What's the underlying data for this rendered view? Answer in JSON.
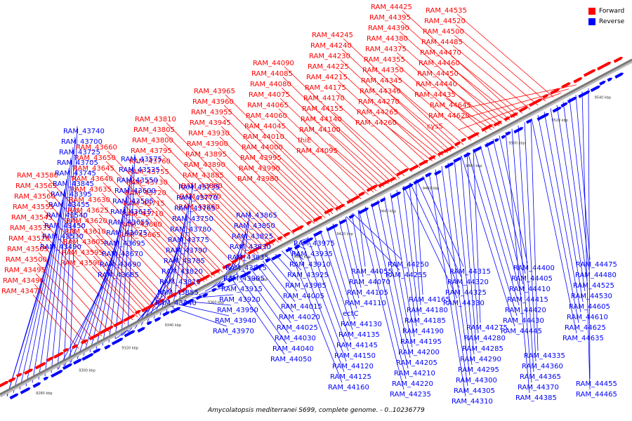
{
  "caption": "Amycolatopsis mediterranei S699, complete genome. - 0..10236779",
  "legend": {
    "forward_label": "Forward",
    "reverse_label": "Reverse",
    "forward_color": "#ff0000",
    "reverse_color": "#0000ff"
  },
  "colors": {
    "axis": "#7a7a7a",
    "forward": "#ff0000",
    "reverse": "#0000ff"
  },
  "ticks": [
    "9280 kbp",
    "9300 kbp",
    "9320 kbp",
    "9340 kbp",
    "9360 kbp",
    "9380 kbp",
    "9400 kbp",
    "9420 kbp",
    "9440 kbp",
    "9460 kbp",
    "9480 kbp",
    "9500 kbp",
    "9520 kbp",
    "9540 kbp"
  ],
  "forward_labels": [
    "RAM_43475",
    "RAM_43490",
    "RAM_43495",
    "RAM_43500",
    "RAM_43505",
    "RAM_43520",
    "RAM_43535",
    "RAM_43545",
    "RAM_43555",
    "RAM_43560",
    "RAM_43565",
    "RAM_43580",
    "RAM_43590",
    "RAM_43595",
    "RAM_43605",
    "RAM_43610",
    "RAM_43620",
    "RAM_43625",
    "RAM_43630",
    "RAM_43635",
    "RAM_43640",
    "RAM_43645",
    "RAM_43650",
    "RAM_43660",
    "RAM_43665",
    "RAM_43680",
    "RAM_43710",
    "RAM_43715",
    "RAM_43720",
    "RAM_43730",
    "RAM_43755",
    "RAM_43760",
    "RAM_43795",
    "RAM_43800",
    "RAM_43805",
    "RAM_43810",
    "RAM_43860",
    "RAM_43870",
    "RAM_43880",
    "RAM_43885",
    "RAM_43890",
    "RAM_43895",
    "RAM_43900",
    "RAM_43930",
    "RAM_43945",
    "RAM_43955",
    "RAM_43960",
    "RAM_43965",
    "RAM_43980",
    "RAM_43990",
    "RAM_43995",
    "RAM_44000",
    "RAM_44010",
    "RAM_44045",
    "RAM_44060",
    "RAM_44065",
    "RAM_44075",
    "RAM_44080",
    "RAM_44085",
    "RAM_44090",
    "RAM_44095",
    "thiE",
    "RAM_44100",
    "RAM_44140",
    "RAM_44155",
    "RAM_44170",
    "RAM_44175",
    "RAM_44215",
    "RAM_44225",
    "RAM_44230",
    "RAM_44240",
    "RAM_44245",
    "RAM_44260",
    "RAM_44265",
    "RAM_44270",
    "RAM_44340",
    "RAM_44345",
    "RAM_44350",
    "RAM_44355",
    "RAM_44375",
    "RAM_44380",
    "RAM_44390",
    "RAM_44395",
    "RAM_44425",
    "RAM_44435",
    "RAM_44440",
    "RAM_44450",
    "RAM_44460",
    "RAM_44470",
    "RAM_44485",
    "RAM_44500",
    "RAM_44520",
    "RAM_44535",
    "cysS",
    "RAM_44620",
    "RAM_44645"
  ],
  "reverse_labels": [
    "RAM_43740",
    "RAM_43700",
    "RAM_43725",
    "RAM_43705",
    "RAM_43745",
    "RAM_43845",
    "RAM_43395",
    "RAM_43455",
    "RAM_43540",
    "RAM_43450",
    "RAM_43530",
    "RAM_43490",
    "RAM_43575",
    "RAM_43525",
    "RAM_43550",
    "RAM_43600",
    "RAM_43585",
    "RAM_43615",
    "RAM_43655",
    "RAM_43675",
    "RAM_43695",
    "RAM_43670",
    "RAM_43690",
    "RAM_43685",
    "RAM_43735",
    "RAM_43770",
    "RAM_43765",
    "RAM_43750",
    "RAM_43780",
    "RAM_43775",
    "RAM_43790",
    "RAM_43785",
    "RAM_43820",
    "RAM_43815",
    "RAM_43855",
    "RAM_43840",
    "RAM_43865",
    "RAM_43850",
    "RAM_43825",
    "RAM_43830",
    "RAM_43835",
    "RAM_43875",
    "RAM_43905",
    "RAM_43915",
    "RAM_43920",
    "RAM_43950",
    "RAM_43940",
    "RAM_43970",
    "RAM_43975",
    "RAM_43935",
    "RAM_43910",
    "RAM_43925",
    "RAM_43985",
    "RAM_44005",
    "RAM_44015",
    "RAM_44020",
    "RAM_44025",
    "RAM_44030",
    "RAM_44040",
    "RAM_44050",
    "RAM_44055",
    "RAM_44070",
    "RAM_44105",
    "RAM_44110",
    "ectC",
    "RAM_44130",
    "RAM_44135",
    "RAM_44145",
    "RAM_44150",
    "RAM_44120",
    "RAM_44125",
    "RAM_44160",
    "RAM_44165",
    "RAM_44180",
    "RAM_44185",
    "RAM_44190",
    "RAM_44195",
    "RAM_44200",
    "RAM_44205",
    "RAM_44210",
    "RAM_44220",
    "RAM_44235",
    "RAM_44250",
    "RAM_44255",
    "RAM_44275",
    "RAM_44280",
    "RAM_44285",
    "RAM_44290",
    "RAM_44295",
    "RAM_44300",
    "RAM_44305",
    "RAM_44310",
    "RAM_44315",
    "RAM_44320",
    "RAM_44325",
    "RAM_44330",
    "RAM_44335",
    "RAM_44360",
    "RAM_44365",
    "RAM_44370",
    "RAM_44385",
    "RAM_44400",
    "RAM_44405",
    "RAM_44410",
    "RAM_44415",
    "RAM_44420",
    "RAM_44430",
    "RAM_44445",
    "RAM_44455",
    "RAM_44465",
    "RAM_44475",
    "RAM_44480",
    "RAM_44525",
    "RAM_44530",
    "RAM_44605",
    "RAM_44610",
    "RAM_44625",
    "RAM_44635"
  ]
}
